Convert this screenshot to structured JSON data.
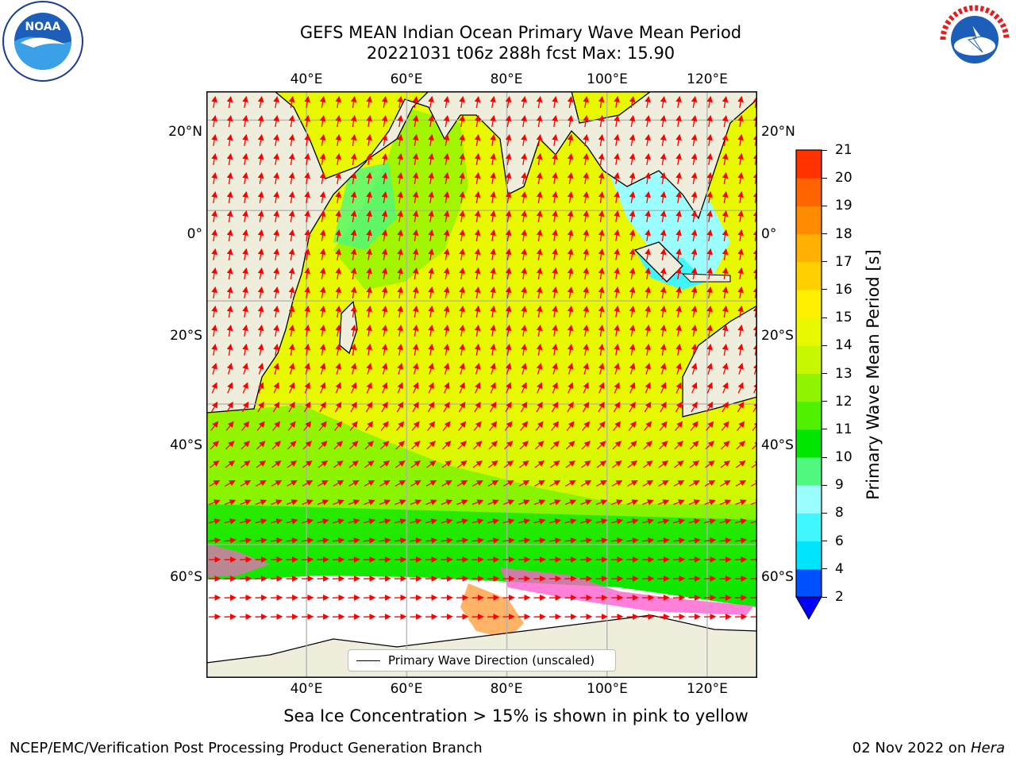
{
  "title_line1": "GEFS MEAN Indian Ocean Primary Wave Mean Period",
  "title_line2": "20221031 t06z 288h fcst   Max: 15.90",
  "subtitle": "Sea Ice Concentration > 15% is shown in pink to yellow",
  "footer_left": "NCEP/EMC/Verification Post Processing Product Generation Branch",
  "footer_date": "02 Nov 2022 on ",
  "footer_host": "Hera",
  "legend_label": "Primary Wave Direction (unscaled)",
  "logos": {
    "left": "NOAA",
    "right": "NATIONAL WEATHER SERVICE"
  },
  "map": {
    "lon_ticks": [
      "40°E",
      "60°E",
      "80°E",
      "100°E",
      "120°E"
    ],
    "lat_ticks": [
      "20°N",
      "0°",
      "20°S",
      "40°S",
      "60°S"
    ],
    "lon_range": [
      20,
      130
    ],
    "lat_range": [
      -72,
      26
    ],
    "gridlines": true,
    "arrow_color": "#ff0000",
    "land_color": "#efeedd",
    "ice_color": "#ffffff"
  },
  "colorbar": {
    "label": "Primary Wave Mean Period [s]",
    "ticks": [
      "2",
      "4",
      "6",
      "8",
      "9",
      "10",
      "11",
      "12",
      "13",
      "14",
      "15",
      "16",
      "17",
      "18",
      "19",
      "20",
      "21"
    ],
    "colors": [
      "#0050ff",
      "#00e5ff",
      "#40f6ff",
      "#9cffff",
      "#50f880",
      "#00e600",
      "#50f000",
      "#90f400",
      "#c8f800",
      "#e8f800",
      "#fff000",
      "#ffd000",
      "#ffb000",
      "#ff8c00",
      "#ff6400",
      "#ff3200"
    ],
    "extend_color": "#0000ff"
  }
}
